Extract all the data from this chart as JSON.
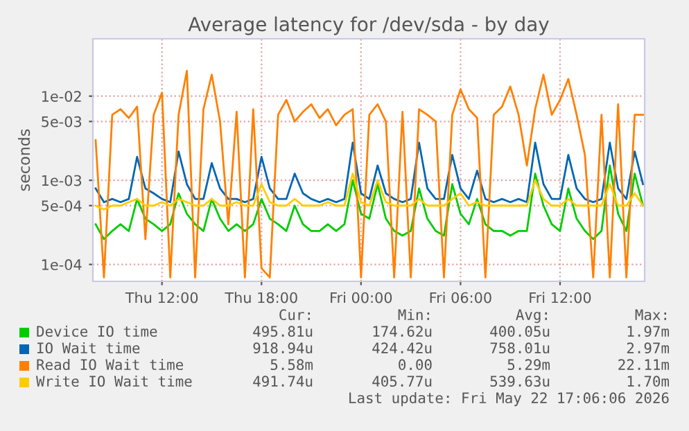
{
  "chart_data": {
    "type": "line",
    "title": "Average latency for /dev/sda - by day",
    "ylabel": "seconds",
    "log": "y",
    "grid": true,
    "legend": "bottom",
    "line_style": "solid",
    "marker": "none",
    "x": [
      "2026-05-21T08:00",
      "2026-05-21T08:30",
      "2026-05-21T09:00",
      "2026-05-21T09:30",
      "2026-05-21T10:00",
      "2026-05-21T10:30",
      "2026-05-21T11:00",
      "2026-05-21T11:30",
      "2026-05-21T12:00",
      "2026-05-21T12:30",
      "2026-05-21T13:00",
      "2026-05-21T13:30",
      "2026-05-21T14:00",
      "2026-05-21T14:30",
      "2026-05-21T15:00",
      "2026-05-21T15:30",
      "2026-05-21T16:00",
      "2026-05-21T16:30",
      "2026-05-21T17:00",
      "2026-05-21T17:30",
      "2026-05-21T18:00",
      "2026-05-21T18:30",
      "2026-05-21T19:00",
      "2026-05-21T19:30",
      "2026-05-21T20:00",
      "2026-05-21T20:30",
      "2026-05-21T21:00",
      "2026-05-21T21:30",
      "2026-05-21T22:00",
      "2026-05-21T22:30",
      "2026-05-21T23:00",
      "2026-05-21T23:30",
      "2026-05-22T00:00",
      "2026-05-22T00:30",
      "2026-05-22T01:00",
      "2026-05-22T01:30",
      "2026-05-22T02:00",
      "2026-05-22T02:30",
      "2026-05-22T03:00",
      "2026-05-22T03:30",
      "2026-05-22T04:00",
      "2026-05-22T04:30",
      "2026-05-22T05:00",
      "2026-05-22T05:30",
      "2026-05-22T06:00",
      "2026-05-22T06:30",
      "2026-05-22T07:00",
      "2026-05-22T07:30",
      "2026-05-22T08:00",
      "2026-05-22T08:30",
      "2026-05-22T09:00",
      "2026-05-22T09:30",
      "2026-05-22T10:00",
      "2026-05-22T10:30",
      "2026-05-22T11:00",
      "2026-05-22T11:30",
      "2026-05-22T12:00",
      "2026-05-22T12:30",
      "2026-05-22T13:00",
      "2026-05-22T13:30",
      "2026-05-22T14:00",
      "2026-05-22T14:30",
      "2026-05-22T15:00",
      "2026-05-22T15:30",
      "2026-05-22T16:00",
      "2026-05-22T16:30",
      "2026-05-22T17:00"
    ],
    "xlim": [
      "2026-05-21T07:50",
      "2026-05-22T17:06"
    ],
    "xticks": [
      {
        "value": "2026-05-21T12:00",
        "label": "Thu 12:00"
      },
      {
        "value": "2026-05-21T18:00",
        "label": "Thu 18:00"
      },
      {
        "value": "2026-05-22T00:00",
        "label": "Fri 00:00"
      },
      {
        "value": "2026-05-22T06:00",
        "label": "Fri 06:00"
      },
      {
        "value": "2026-05-22T12:00",
        "label": "Fri 12:00"
      }
    ],
    "ylim": [
      6.3e-05,
      0.048
    ],
    "yticks": [
      {
        "value": 0.0001,
        "label": "1e-04"
      },
      {
        "value": 0.0005,
        "label": "5e-04"
      },
      {
        "value": 0.001,
        "label": "1e-03"
      },
      {
        "value": 0.005,
        "label": "5e-03"
      },
      {
        "value": 0.01,
        "label": "1e-02"
      }
    ],
    "series": [
      {
        "name": "Device IO time",
        "color": "#00cc00",
        "values": [
          0.0003,
          0.0002,
          0.00025,
          0.0003,
          0.00025,
          0.0006,
          0.00035,
          0.0003,
          0.00025,
          0.0003,
          0.0007,
          0.0004,
          0.0003,
          0.00025,
          0.0006,
          0.00035,
          0.00025,
          0.0003,
          0.00025,
          0.0003,
          0.0006,
          0.00035,
          0.0003,
          0.00025,
          0.0005,
          0.0003,
          0.00025,
          0.00025,
          0.0003,
          0.00025,
          0.0003,
          0.001,
          0.0004,
          0.00035,
          0.0009,
          0.00035,
          0.00025,
          0.00022,
          0.00025,
          0.0008,
          0.00035,
          0.00025,
          0.00022,
          0.0009,
          0.0004,
          0.0003,
          0.0006,
          0.0003,
          0.00025,
          0.00025,
          0.00022,
          0.00025,
          0.00025,
          0.0012,
          0.0005,
          0.0003,
          0.00025,
          0.0008,
          0.00035,
          0.00025,
          0.0002,
          0.00025,
          0.0015,
          0.0004,
          0.00025,
          0.0012,
          0.0005
        ]
      },
      {
        "name": "IO Wait time",
        "color": "#0066b3",
        "values": [
          0.0008,
          0.00055,
          0.0006,
          0.00055,
          0.0006,
          0.0019,
          0.0008,
          0.0007,
          0.0006,
          0.00055,
          0.0022,
          0.0009,
          0.0006,
          0.0006,
          0.0016,
          0.0008,
          0.0006,
          0.0006,
          0.00055,
          0.0006,
          0.0019,
          0.0008,
          0.0006,
          0.0006,
          0.0012,
          0.0007,
          0.0006,
          0.00055,
          0.0006,
          0.00055,
          0.0006,
          0.0028,
          0.0007,
          0.0006,
          0.0015,
          0.0007,
          0.0006,
          0.00055,
          0.0006,
          0.0028,
          0.0008,
          0.0006,
          0.0006,
          0.002,
          0.0008,
          0.0006,
          0.0013,
          0.0006,
          0.00055,
          0.0006,
          0.00055,
          0.0006,
          0.00055,
          0.0028,
          0.0009,
          0.0006,
          0.0006,
          0.002,
          0.0008,
          0.0006,
          0.00055,
          0.0006,
          0.0028,
          0.0008,
          0.0006,
          0.0022,
          0.0009
        ]
      },
      {
        "name": "Read IO Wait time",
        "color": "#ff8000",
        "values": [
          0.003,
          7e-05,
          0.006,
          0.007,
          0.0055,
          0.0075,
          0.0002,
          0.006,
          0.011,
          7e-05,
          0.006,
          0.02,
          7e-05,
          0.007,
          0.018,
          0.005,
          0.0003,
          0.0065,
          7e-05,
          0.007,
          9e-05,
          7e-05,
          0.006,
          0.009,
          0.005,
          0.0065,
          0.008,
          0.0055,
          0.007,
          0.0045,
          0.006,
          0.007,
          7e-05,
          0.006,
          0.008,
          0.005,
          7e-05,
          0.0065,
          7e-05,
          0.007,
          0.006,
          0.005,
          7e-05,
          0.006,
          0.012,
          0.007,
          0.0055,
          7e-05,
          0.006,
          0.0075,
          0.013,
          0.006,
          0.0015,
          0.007,
          0.018,
          0.006,
          0.009,
          0.016,
          0.006,
          0.002,
          7e-05,
          0.006,
          7e-05,
          0.008,
          7e-05,
          0.006,
          0.006
        ]
      },
      {
        "name": "Write IO Wait time",
        "color": "#ffcc00",
        "values": [
          0.0005,
          0.00045,
          0.0005,
          0.0005,
          0.00055,
          0.0006,
          0.0005,
          0.0005,
          0.00055,
          0.0005,
          0.0006,
          0.00055,
          0.0005,
          0.0005,
          0.0006,
          0.0005,
          0.0005,
          0.00055,
          0.0005,
          0.0005,
          0.0009,
          0.00055,
          0.0005,
          0.0005,
          0.0006,
          0.0005,
          0.0005,
          0.0005,
          0.00055,
          0.0005,
          0.0005,
          0.0012,
          0.00055,
          0.0005,
          0.001,
          0.00055,
          0.0005,
          0.0005,
          0.0005,
          0.0006,
          0.0005,
          0.0005,
          0.0005,
          0.0006,
          0.0007,
          0.0005,
          0.00055,
          0.0005,
          0.0005,
          0.0005,
          0.0005,
          0.0005,
          0.0005,
          0.001,
          0.0006,
          0.0005,
          0.0005,
          0.0006,
          0.0005,
          0.0005,
          0.0005,
          0.0005,
          0.0009,
          0.0005,
          0.0005,
          0.0007,
          0.0005
        ]
      }
    ],
    "annotations": [
      "Cur:",
      "Min:",
      "Avg:",
      "Max:",
      "495.81u",
      "174.62u",
      "400.05u",
      "1.97m",
      "918.94u",
      "424.42u",
      "758.01u",
      "2.97m",
      "5.58m",
      "0.00",
      "5.29m",
      "22.11m",
      "491.74u",
      "405.77u",
      "539.63u",
      "1.70m",
      "Last update: Fri May 22 17:06:06 2026"
    ]
  }
}
